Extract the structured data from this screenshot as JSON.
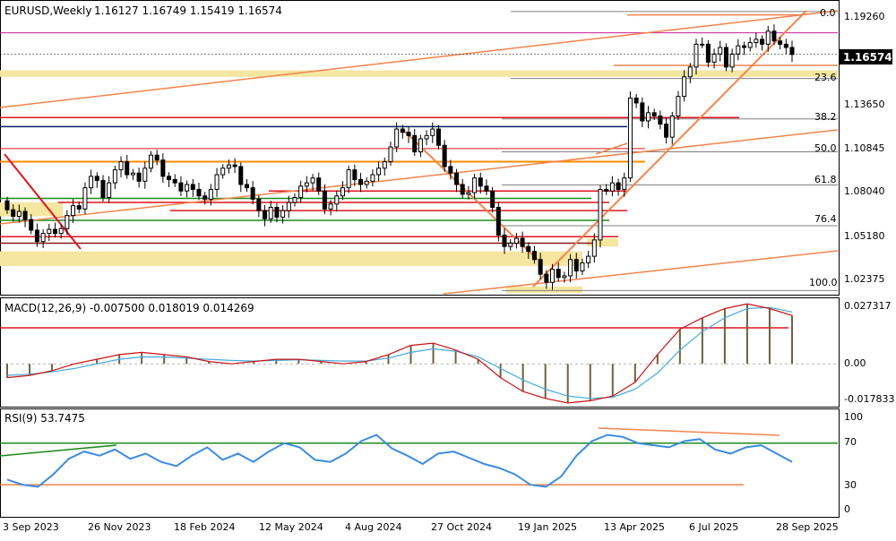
{
  "header": {
    "symbol": "EURUSD,Weekly",
    "ohlc": "1.16127 1.16749 1.15419 1.16574"
  },
  "price_axis": {
    "ticks": [
      "1.19260",
      "1.13650",
      "1.10845",
      "1.08040",
      "1.05180",
      "1.02375"
    ],
    "current_price": "1.16574"
  },
  "fib_levels": [
    "0.0",
    "23.6",
    "38.2",
    "50.0",
    "61.8",
    "76.4",
    "100.0"
  ],
  "time_axis": [
    "3 Sep 2023",
    "26 Nov 2023",
    "18 Feb 2024",
    "12 May 2024",
    "4 Aug 2024",
    "27 Oct 2024",
    "19 Jan 2025",
    "13 Apr 2025",
    "6 Jul 2025",
    "28 Sep 2025"
  ],
  "macd": {
    "label": "MACD(12,26,9) -0.007500 0.018019 0.014269",
    "ticks": [
      "0.027317",
      "0.00",
      "-0.017833"
    ]
  },
  "rsi": {
    "label": "RSI(9) 53.7475",
    "ticks": [
      "100",
      "70",
      "30",
      "0"
    ]
  },
  "colors": {
    "bull": "#ffffff",
    "bear": "#000000",
    "grid": "#b0b0b0",
    "trend": "#f4844c",
    "red_line": "#e0141e",
    "navy": "#0a1e64",
    "green": "#1e8c1e",
    "orange": "#ff8c00",
    "magenta": "#c81e96",
    "zone": "#f5e6a0",
    "macd_signal": "#c81414",
    "macd_main": "#44aadd",
    "hist": "#706040",
    "rsi": "#3b8be0"
  },
  "chart_data": [
    {
      "type": "candlestick",
      "title": "EURUSD,Weekly",
      "ylim": [
        1.019,
        1.198
      ],
      "x_labels": [
        "3 Sep 2023",
        "26 Nov 2023",
        "18 Feb 2024",
        "12 May 2024",
        "4 Aug 2024",
        "27 Oct 2024",
        "19 Jan 2025",
        "13 Apr 2025",
        "6 Jul 2025",
        "28 Sep 2025"
      ],
      "fib_retracement": {
        "0.0": 1.192,
        "23.6": 1.151,
        "38.2": 1.1262,
        "50.0": 1.106,
        "61.8": 1.0857,
        "76.4": 1.0607,
        "100.0": 1.021
      },
      "closes": [
        1.0705,
        1.0665,
        1.0695,
        1.0645,
        1.058,
        1.051,
        1.056,
        1.0585,
        1.056,
        1.059,
        1.067,
        1.073,
        1.071,
        1.084,
        1.091,
        1.0885,
        1.078,
        1.087,
        1.095,
        1.1,
        1.092,
        1.093,
        1.088,
        1.096,
        1.104,
        1.101,
        1.091,
        1.089,
        1.087,
        1.082,
        1.086,
        1.083,
        1.079,
        1.077,
        1.083,
        1.092,
        1.096,
        1.098,
        1.097,
        1.086,
        1.084,
        1.077,
        1.07,
        1.065,
        1.072,
        1.066,
        1.07,
        1.075,
        1.078,
        1.085,
        1.087,
        1.09,
        1.082,
        1.071,
        1.074,
        1.079,
        1.084,
        1.095,
        1.089,
        1.086,
        1.088,
        1.092,
        1.096,
        1.1,
        1.109,
        1.12,
        1.118,
        1.116,
        1.106,
        1.114,
        1.116,
        1.12,
        1.11,
        1.097,
        1.093,
        1.086,
        1.08,
        1.081,
        1.09,
        1.085,
        1.082,
        1.072,
        1.055,
        1.048,
        1.05,
        1.053,
        1.048,
        1.045,
        1.04,
        1.031,
        1.026,
        1.034,
        1.029,
        1.03,
        1.04,
        1.033,
        1.038,
        1.042,
        1.052,
        1.083,
        1.082,
        1.087,
        1.083,
        1.09,
        1.139,
        1.136,
        1.125,
        1.13,
        1.128,
        1.123,
        1.115,
        1.128,
        1.14,
        1.152,
        1.158,
        1.172,
        1.172,
        1.161,
        1.166,
        1.17,
        1.158,
        1.166,
        1.171,
        1.17,
        1.173,
        1.175,
        1.172,
        1.18,
        1.174,
        1.172,
        1.17,
        1.1657
      ]
    },
    {
      "type": "line",
      "title": "MACD(12,26,9)",
      "series": [
        {
          "name": "signal",
          "values": [
            -0.006,
            -0.005,
            -0.003,
            0.0,
            0.002,
            0.004,
            0.005,
            0.004,
            0.003,
            0.001,
            0.0,
            0.001,
            0.002,
            0.002,
            0.001,
            0.0,
            0.001,
            0.004,
            0.008,
            0.009,
            0.006,
            0.002,
            -0.006,
            -0.012,
            -0.015,
            -0.017,
            -0.016,
            -0.014,
            -0.008,
            0.004,
            0.015,
            0.02,
            0.024,
            0.026,
            0.024,
            0.021
          ]
        },
        {
          "name": "main",
          "values": [
            -0.005,
            -0.0045,
            -0.0035,
            -0.002,
            0.0,
            0.002,
            0.003,
            0.003,
            0.0025,
            0.002,
            0.0015,
            0.0012,
            0.0015,
            0.0018,
            0.0015,
            0.0012,
            0.0012,
            0.0025,
            0.005,
            0.0065,
            0.0055,
            0.003,
            -0.002,
            -0.007,
            -0.011,
            -0.014,
            -0.015,
            -0.0145,
            -0.011,
            -0.004,
            0.006,
            0.014,
            0.02,
            0.024,
            0.0245,
            0.0225
          ]
        }
      ],
      "ylim": [
        -0.0178,
        0.0273
      ]
    },
    {
      "type": "line",
      "title": "RSI(9)",
      "ylim": [
        0,
        100
      ],
      "series": [
        {
          "name": "RSI(9)",
          "values": [
            35,
            30,
            28,
            40,
            55,
            62,
            58,
            64,
            55,
            60,
            52,
            48,
            58,
            66,
            54,
            60,
            52,
            62,
            70,
            66,
            54,
            52,
            60,
            72,
            78,
            65,
            58,
            50,
            60,
            62,
            56,
            50,
            46,
            40,
            30,
            28,
            38,
            58,
            72,
            78,
            76,
            70,
            68,
            66,
            72,
            74,
            64,
            60,
            66,
            68,
            60,
            52
          ]
        }
      ]
    }
  ]
}
